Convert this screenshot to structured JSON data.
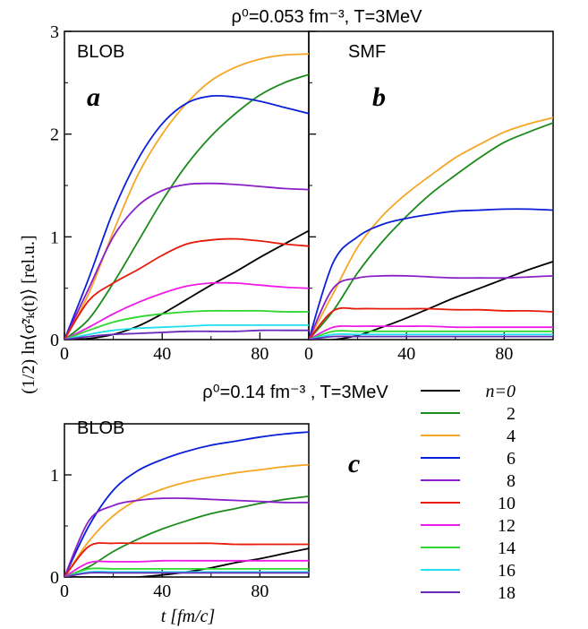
{
  "figure": {
    "title_top": "ρ⁰=0.053 fm⁻³, T=3MeV",
    "title_mid": "ρ⁰=0.14 fm⁻³ , T=3MeV",
    "ylabel": "(1/2) ln⟨σ̃²ₖ(t)⟩  [rel.u.]",
    "xlabel": "t [fm/c]"
  },
  "legend": {
    "entries": [
      {
        "label": "n=0",
        "color": "#000000"
      },
      {
        "label": "2",
        "color": "#1b8a1b"
      },
      {
        "label": "4",
        "color": "#f5a623"
      },
      {
        "label": "6",
        "color": "#0a20d8"
      },
      {
        "label": "8",
        "color": "#8a1ec8"
      },
      {
        "label": "10",
        "color": "#e81a0a"
      },
      {
        "label": "12",
        "color": "#f01ae8"
      },
      {
        "label": "14",
        "color": "#2ed62e"
      },
      {
        "label": "16",
        "color": "#20e0f0"
      },
      {
        "label": "18",
        "color": "#6a2ab8"
      }
    ]
  },
  "chart_data": [
    {
      "type": "line",
      "panel_label": "a",
      "model_label": "BLOB",
      "xlim": [
        0,
        100
      ],
      "ylim": [
        0,
        3
      ],
      "xticks": [
        "0",
        "40",
        "80"
      ],
      "yticks": [
        "0",
        "1",
        "2",
        "3"
      ],
      "series": [
        {
          "name": "n=0",
          "color": "#000000",
          "x": [
            0,
            10,
            20,
            30,
            40,
            50,
            60,
            70,
            80,
            90,
            100
          ],
          "y": [
            0,
            0.01,
            0.05,
            0.13,
            0.25,
            0.39,
            0.53,
            0.66,
            0.8,
            0.93,
            1.06
          ]
        },
        {
          "name": "2",
          "color": "#1b8a1b",
          "x": [
            0,
            10,
            20,
            30,
            40,
            50,
            60,
            70,
            80,
            90,
            100
          ],
          "y": [
            0,
            0.2,
            0.55,
            0.95,
            1.35,
            1.7,
            1.98,
            2.2,
            2.38,
            2.5,
            2.58
          ]
        },
        {
          "name": "4",
          "color": "#f5a623",
          "x": [
            0,
            10,
            20,
            30,
            40,
            50,
            60,
            70,
            80,
            90,
            100
          ],
          "y": [
            0,
            0.45,
            1.05,
            1.6,
            2.0,
            2.3,
            2.52,
            2.65,
            2.73,
            2.77,
            2.78
          ]
        },
        {
          "name": "6",
          "color": "#0a20d8",
          "x": [
            0,
            10,
            20,
            30,
            40,
            50,
            60,
            70,
            80,
            90,
            100
          ],
          "y": [
            0,
            0.6,
            1.25,
            1.75,
            2.1,
            2.3,
            2.37,
            2.36,
            2.32,
            2.26,
            2.2
          ]
        },
        {
          "name": "8",
          "color": "#8a1ec8",
          "x": [
            0,
            10,
            20,
            30,
            40,
            50,
            60,
            70,
            80,
            90,
            100
          ],
          "y": [
            0,
            0.5,
            1.0,
            1.3,
            1.45,
            1.51,
            1.52,
            1.51,
            1.49,
            1.47,
            1.46
          ]
        },
        {
          "name": "10",
          "color": "#e81a0a",
          "x": [
            0,
            10,
            20,
            30,
            40,
            50,
            60,
            70,
            80,
            90,
            100
          ],
          "y": [
            0,
            0.38,
            0.55,
            0.68,
            0.82,
            0.93,
            0.97,
            0.98,
            0.96,
            0.93,
            0.91
          ]
        },
        {
          "name": "12",
          "color": "#f01ae8",
          "x": [
            0,
            10,
            20,
            30,
            40,
            50,
            60,
            70,
            80,
            90,
            100
          ],
          "y": [
            0,
            0.12,
            0.25,
            0.36,
            0.45,
            0.52,
            0.55,
            0.55,
            0.53,
            0.51,
            0.5
          ]
        },
        {
          "name": "14",
          "color": "#2ed62e",
          "x": [
            0,
            10,
            20,
            30,
            40,
            50,
            60,
            70,
            80,
            90,
            100
          ],
          "y": [
            0,
            0.09,
            0.17,
            0.22,
            0.25,
            0.27,
            0.28,
            0.28,
            0.28,
            0.27,
            0.27
          ]
        },
        {
          "name": "16",
          "color": "#20e0f0",
          "x": [
            0,
            10,
            20,
            30,
            40,
            50,
            60,
            70,
            80,
            90,
            100
          ],
          "y": [
            0,
            0.05,
            0.09,
            0.11,
            0.12,
            0.13,
            0.14,
            0.14,
            0.14,
            0.14,
            0.14
          ]
        },
        {
          "name": "18",
          "color": "#6a2ab8",
          "x": [
            0,
            10,
            20,
            30,
            40,
            50,
            60,
            70,
            80,
            90,
            100
          ],
          "y": [
            0,
            0.03,
            0.05,
            0.06,
            0.07,
            0.08,
            0.08,
            0.08,
            0.09,
            0.09,
            0.09
          ]
        }
      ]
    },
    {
      "type": "line",
      "panel_label": "b",
      "model_label": "SMF",
      "xlim": [
        0,
        100
      ],
      "ylim": [
        0,
        3
      ],
      "xticks": [
        "0",
        "40",
        "80"
      ],
      "series": [
        {
          "name": "n=0",
          "color": "#000000",
          "x": [
            0,
            10,
            20,
            30,
            40,
            50,
            60,
            70,
            80,
            90,
            100
          ],
          "y": [
            0,
            0,
            0.04,
            0.12,
            0.21,
            0.31,
            0.41,
            0.5,
            0.59,
            0.68,
            0.76
          ]
        },
        {
          "name": "2",
          "color": "#1b8a1b",
          "x": [
            0,
            10,
            20,
            30,
            40,
            50,
            60,
            70,
            80,
            90,
            100
          ],
          "y": [
            0,
            0.28,
            0.65,
            0.95,
            1.2,
            1.42,
            1.6,
            1.77,
            1.92,
            2.02,
            2.11
          ]
        },
        {
          "name": "4",
          "color": "#f5a623",
          "x": [
            0,
            10,
            20,
            30,
            40,
            50,
            60,
            70,
            80,
            90,
            100
          ],
          "y": [
            0,
            0.45,
            0.9,
            1.2,
            1.42,
            1.6,
            1.77,
            1.9,
            2.02,
            2.1,
            2.16
          ]
        },
        {
          "name": "6",
          "color": "#0a20d8",
          "x": [
            0,
            10,
            20,
            30,
            40,
            50,
            60,
            70,
            80,
            90,
            100
          ],
          "y": [
            0,
            0.75,
            1.0,
            1.12,
            1.18,
            1.22,
            1.25,
            1.26,
            1.27,
            1.27,
            1.26
          ]
        },
        {
          "name": "8",
          "color": "#8a1ec8",
          "x": [
            0,
            10,
            20,
            30,
            40,
            50,
            60,
            70,
            80,
            90,
            100
          ],
          "y": [
            0,
            0.5,
            0.6,
            0.62,
            0.62,
            0.61,
            0.6,
            0.6,
            0.6,
            0.61,
            0.62
          ]
        },
        {
          "name": "10",
          "color": "#e81a0a",
          "x": [
            0,
            10,
            20,
            30,
            40,
            50,
            60,
            70,
            80,
            90,
            100
          ],
          "y": [
            0,
            0.28,
            0.3,
            0.3,
            0.3,
            0.3,
            0.29,
            0.29,
            0.28,
            0.28,
            0.27
          ]
        },
        {
          "name": "12",
          "color": "#f01ae8",
          "x": [
            0,
            10,
            20,
            30,
            40,
            50,
            60,
            70,
            80,
            90,
            100
          ],
          "y": [
            0,
            0.12,
            0.13,
            0.13,
            0.13,
            0.13,
            0.12,
            0.12,
            0.12,
            0.12,
            0.12
          ]
        },
        {
          "name": "14",
          "color": "#2ed62e",
          "x": [
            0,
            10,
            20,
            30,
            40,
            50,
            60,
            70,
            80,
            90,
            100
          ],
          "y": [
            0,
            0.08,
            0.08,
            0.08,
            0.08,
            0.08,
            0.08,
            0.08,
            0.08,
            0.08,
            0.08
          ]
        },
        {
          "name": "16",
          "color": "#20e0f0",
          "x": [
            0,
            10,
            20,
            30,
            40,
            50,
            60,
            70,
            80,
            90,
            100
          ],
          "y": [
            0,
            0.05,
            0.05,
            0.05,
            0.05,
            0.05,
            0.05,
            0.05,
            0.05,
            0.05,
            0.05
          ]
        },
        {
          "name": "18",
          "color": "#6a2ab8",
          "x": [
            0,
            10,
            20,
            30,
            40,
            50,
            60,
            70,
            80,
            90,
            100
          ],
          "y": [
            0,
            0.03,
            0.03,
            0.03,
            0.03,
            0.03,
            0.03,
            0.03,
            0.03,
            0.03,
            0.03
          ]
        }
      ]
    },
    {
      "type": "line",
      "panel_label": "c",
      "model_label": "BLOB",
      "xlim": [
        0,
        100
      ],
      "ylim": [
        0,
        1.5
      ],
      "xticks": [
        "0",
        "40",
        "80"
      ],
      "yticks": [
        "0",
        "1"
      ],
      "series": [
        {
          "name": "n=0",
          "color": "#000000",
          "x": [
            0,
            10,
            20,
            30,
            40,
            50,
            60,
            70,
            80,
            90,
            100
          ],
          "y": [
            0,
            0,
            0,
            0,
            0.02,
            0.05,
            0.09,
            0.14,
            0.18,
            0.23,
            0.28
          ]
        },
        {
          "name": "2",
          "color": "#1b8a1b",
          "x": [
            0,
            10,
            20,
            30,
            40,
            50,
            60,
            70,
            80,
            90,
            100
          ],
          "y": [
            0,
            0.1,
            0.25,
            0.37,
            0.47,
            0.55,
            0.62,
            0.67,
            0.72,
            0.76,
            0.79
          ]
        },
        {
          "name": "4",
          "color": "#f5a623",
          "x": [
            0,
            10,
            20,
            30,
            40,
            50,
            60,
            70,
            80,
            90,
            100
          ],
          "y": [
            0,
            0.35,
            0.6,
            0.76,
            0.86,
            0.93,
            0.98,
            1.02,
            1.05,
            1.08,
            1.1
          ]
        },
        {
          "name": "6",
          "color": "#0a20d8",
          "x": [
            0,
            10,
            20,
            30,
            40,
            50,
            60,
            70,
            80,
            90,
            100
          ],
          "y": [
            0,
            0.5,
            0.85,
            1.04,
            1.15,
            1.23,
            1.29,
            1.33,
            1.37,
            1.4,
            1.42
          ]
        },
        {
          "name": "8",
          "color": "#8a1ec8",
          "x": [
            0,
            10,
            20,
            30,
            40,
            50,
            60,
            70,
            80,
            90,
            100
          ],
          "y": [
            0,
            0.55,
            0.7,
            0.75,
            0.77,
            0.77,
            0.76,
            0.75,
            0.74,
            0.73,
            0.73
          ]
        },
        {
          "name": "10",
          "color": "#e81a0a",
          "x": [
            0,
            10,
            20,
            30,
            40,
            50,
            60,
            70,
            80,
            90,
            100
          ],
          "y": [
            0,
            0.3,
            0.33,
            0.33,
            0.33,
            0.33,
            0.33,
            0.32,
            0.32,
            0.32,
            0.32
          ]
        },
        {
          "name": "12",
          "color": "#f01ae8",
          "x": [
            0,
            10,
            20,
            30,
            40,
            50,
            60,
            70,
            80,
            90,
            100
          ],
          "y": [
            0,
            0.14,
            0.15,
            0.15,
            0.16,
            0.16,
            0.16,
            0.16,
            0.16,
            0.16,
            0.16
          ]
        },
        {
          "name": "14",
          "color": "#2ed62e",
          "x": [
            0,
            10,
            20,
            30,
            40,
            50,
            60,
            70,
            80,
            90,
            100
          ],
          "y": [
            0,
            0.08,
            0.08,
            0.08,
            0.08,
            0.08,
            0.08,
            0.08,
            0.08,
            0.08,
            0.08
          ]
        },
        {
          "name": "16",
          "color": "#20e0f0",
          "x": [
            0,
            10,
            20,
            30,
            40,
            50,
            60,
            70,
            80,
            90,
            100
          ],
          "y": [
            0,
            0.05,
            0.05,
            0.05,
            0.05,
            0.05,
            0.05,
            0.05,
            0.05,
            0.05,
            0.05
          ]
        },
        {
          "name": "18",
          "color": "#6a2ab8",
          "x": [
            0,
            10,
            20,
            30,
            40,
            50,
            60,
            70,
            80,
            90,
            100
          ],
          "y": [
            0,
            0.04,
            0.04,
            0.04,
            0.04,
            0.04,
            0.04,
            0.04,
            0.04,
            0.04,
            0.04
          ]
        }
      ]
    }
  ]
}
